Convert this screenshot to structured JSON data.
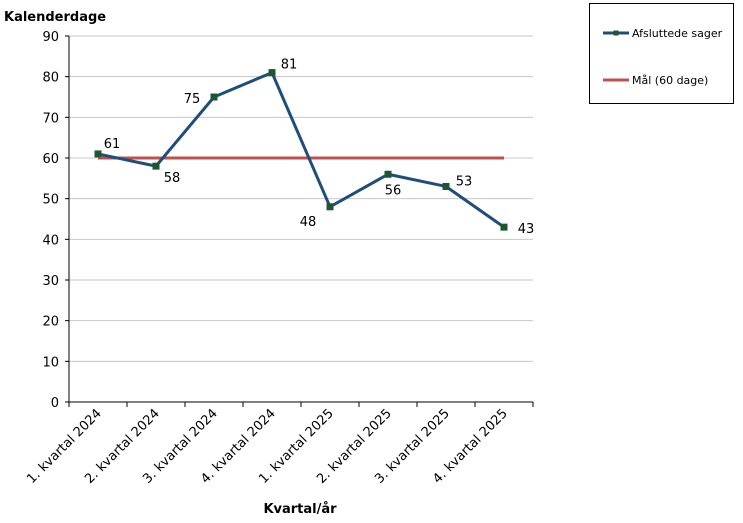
{
  "chart_data": {
    "type": "line",
    "ylabel": "Kalenderdage",
    "xlabel": "Kvartal/år",
    "categories": [
      "1. kvartal 2024",
      "2. kvartal 2024",
      "3. kvartal 2024",
      "4. kvartal 2024",
      "1. kvartal 2025",
      "2. kvartal 2025",
      "3. kvartal 2025",
      "4. kvartal 2025"
    ],
    "ylim": [
      0,
      90
    ],
    "yticks": [
      0,
      10,
      20,
      30,
      40,
      50,
      60,
      70,
      80,
      90
    ],
    "grid": true,
    "legend_position": "top-right",
    "series": [
      {
        "name": "Afsluttede sager",
        "values": [
          61,
          58,
          75,
          81,
          48,
          56,
          53,
          43
        ],
        "color": "#1f4e79",
        "marker_color": "#1e5631",
        "data_labels": true
      },
      {
        "name": "Mål (60 dage)",
        "values": [
          60,
          60,
          60,
          60,
          60,
          60,
          60,
          60
        ],
        "color": "#c0504d",
        "data_labels": false
      }
    ]
  }
}
